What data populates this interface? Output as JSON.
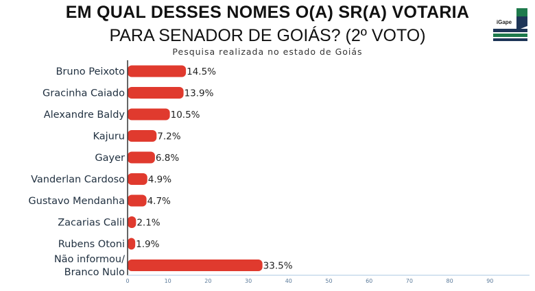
{
  "header": {
    "title": "EM QUAL DESSES NOMES O(A) SR(A) VOTARIA",
    "subtitle": "PARA SENADOR DE GOIÁS? (2º VOTO)",
    "caption": "Pesquisa realizada no estado de Goiás"
  },
  "logo": {
    "text": "iGape"
  },
  "chart_data": {
    "type": "bar",
    "orientation": "horizontal",
    "categories": [
      [
        "Bruno Peixoto"
      ],
      [
        "Gracinha Caiado"
      ],
      [
        "Alexandre Baldy"
      ],
      [
        "Kajuru"
      ],
      [
        "Gayer"
      ],
      [
        "Vanderlan Cardoso"
      ],
      [
        "Gustavo Mendanha"
      ],
      [
        "Zacarias Calil"
      ],
      [
        "Rubens Otoni"
      ],
      [
        "Não informou/",
        "Branco Nulo"
      ]
    ],
    "values": [
      14.5,
      13.9,
      10.5,
      7.2,
      6.8,
      4.9,
      4.7,
      2.1,
      1.9,
      33.5
    ],
    "value_labels": [
      "14.5%",
      "13.9%",
      "10.5%",
      "7.2%",
      "6.8%",
      "4.9%",
      "4.7%",
      "2.1%",
      "1.9%",
      "33.5%"
    ],
    "xticks": [
      0,
      10,
      20,
      30,
      40,
      50,
      60,
      70,
      80,
      90
    ],
    "xlim": [
      0,
      100
    ],
    "bar_color": "#e03a2e",
    "grid": false
  },
  "colors": {
    "logo_green": "#1e7a4c",
    "logo_navy": "#1d3557"
  }
}
